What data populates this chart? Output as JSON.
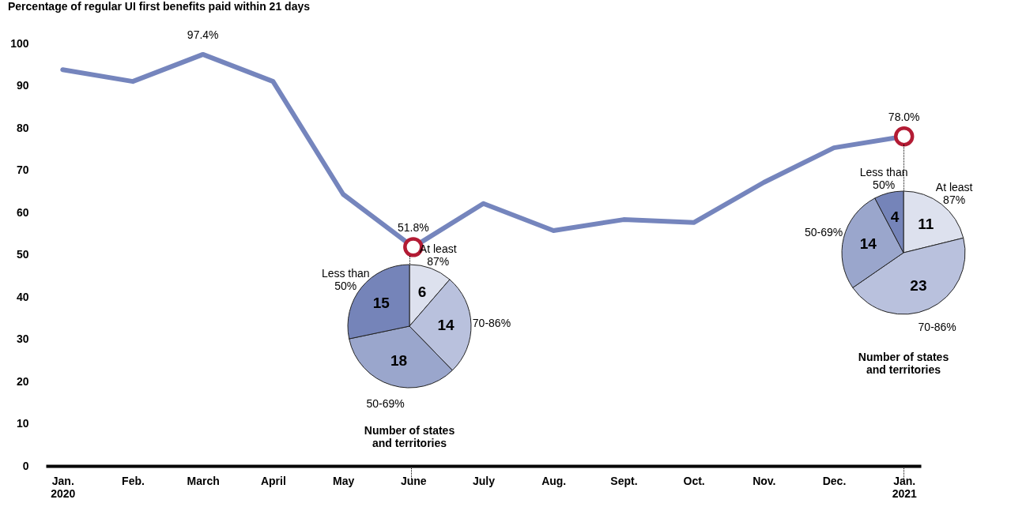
{
  "chart_data": [
    {
      "type": "line",
      "title": "Percentage of regular UI first benefits paid within 21 days",
      "categories": [
        "Jan.\n2020",
        "Feb.",
        "March",
        "April",
        "May",
        "June",
        "July",
        "Aug.",
        "Sept.",
        "Oct.",
        "Nov.",
        "Dec.",
        "Jan.\n2021"
      ],
      "series": [
        {
          "color": "#7585bd",
          "values": [
            93.8,
            91.0,
            97.4,
            91.0,
            64.3,
            51.8,
            62.1,
            55.7,
            58.3,
            57.6,
            67.1,
            75.3,
            78.0
          ],
          "value_labels": [
            null,
            null,
            "97.4%",
            null,
            null,
            "51.8%",
            null,
            null,
            null,
            null,
            null,
            null,
            "78.0%"
          ]
        },
        {
          "type": "scatter",
          "x": [
            "June",
            "Jan.\n2021"
          ],
          "values": [
            51.8,
            78.0
          ],
          "color": "#b31b34",
          "marker": "circle"
        }
      ],
      "ylim": [
        0,
        100
      ],
      "yticks": [
        0,
        10,
        20,
        30,
        40,
        50,
        60,
        70,
        80,
        90,
        100
      ],
      "grid": false,
      "marker": "none"
    },
    {
      "type": "pie",
      "title": "Number of states\nand territories",
      "categories": [
        "At least\n87%",
        "70-86%",
        "50-69%",
        "Less than\n50%"
      ],
      "values": [
        6,
        14,
        18,
        15
      ],
      "colors": [
        "#dde1ee",
        "#b9c1dd",
        "#9aa6cc",
        "#7584b9"
      ],
      "data_labels": true
    },
    {
      "type": "pie",
      "title": "Number of states\nand territories",
      "categories": [
        "At least\n87%",
        "70-86%",
        "50-69%",
        "Less than\n50%"
      ],
      "values": [
        11,
        23,
        14,
        4
      ],
      "colors": [
        "#dde1ee",
        "#b9c1dd",
        "#9aa6cc",
        "#7584b9"
      ],
      "data_labels": true
    }
  ]
}
